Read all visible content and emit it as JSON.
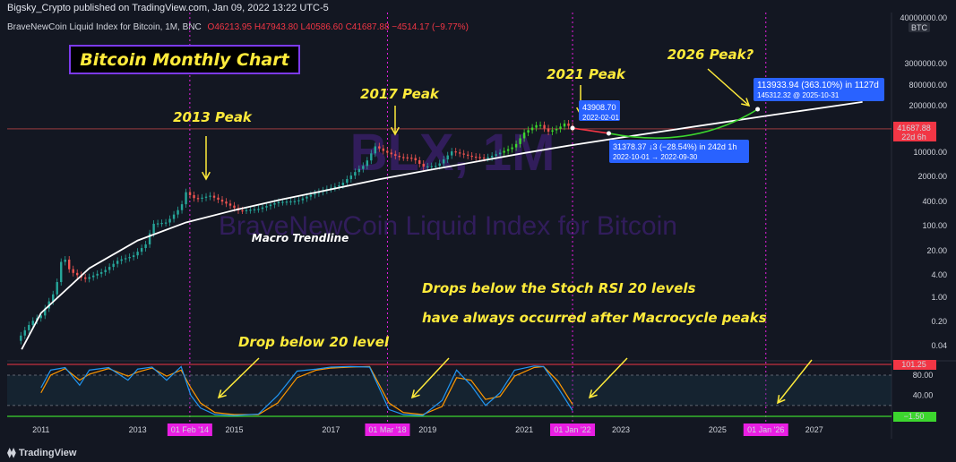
{
  "header": {
    "credit": "Bigsky_Crypto published on TradingView.com, Jan 09, 2022 13:22 UTC-5",
    "symbol": "BraveNewCoin Liquid Index for Bitcoin, 1M, BNC",
    "ohlc": "O46213.95 H47943.80 L40586.60 C41687.88 −4514.17 (−9.77%)"
  },
  "watermark": {
    "ticker": "BLX, 1M",
    "name": "BraveNewCoin Liquid Index for Bitcoin"
  },
  "footer": {
    "brand": "TradingView",
    "logo": "tradingview-logo-icon"
  },
  "annotations": {
    "title": "Bitcoin Monthly Chart",
    "peak_2013": "2013 Peak",
    "peak_2017": "2017 Peak",
    "peak_2021": "2021 Peak",
    "peak_2026": "2026 Peak?",
    "trendline": "Macro Trendline",
    "note_line1": "Drops below the Stoch RSI 20 levels",
    "note_line2": "have always occurred after Macrocycle peaks",
    "drop_label": "Drop below 20 level"
  },
  "tooltips": {
    "peak_2021_price": "43908.70",
    "peak_2021_date": "2022-02-01",
    "bottom_line1": "31378.37 ↓3 (−28.54%) in 242d 1h",
    "bottom_line2": "2022-10-01 → 2022-09-30",
    "target_line1": "113933.94 (363.10%) in 1127d",
    "target_line2": "145312.32 @ 2025-10-31"
  },
  "price_axis": {
    "currency": "BTC",
    "ticks": [
      "40000000.00",
      "3000000.00",
      "800000.00",
      "200000.00",
      "10000.00",
      "2000.00",
      "400.00",
      "100.00",
      "20.00",
      "4.00",
      "1.00",
      "0.20",
      "0.04"
    ],
    "current_price": "41687.88",
    "current_countdown": "22d 6h"
  },
  "rsi_axis": {
    "ticks": [
      "80.00",
      "40.00"
    ],
    "upper_label": "101.25",
    "lower_label": "−1.50"
  },
  "time_axis": {
    "ticks": [
      "2011",
      "2013",
      "2015",
      "2017",
      "2019",
      "2021",
      "2023",
      "2025",
      "2027"
    ],
    "markers": [
      "01 Feb '14",
      "01 Mar '18",
      "01 Jan '22",
      "01 Jan '26"
    ]
  },
  "colors": {
    "bg": "#131722",
    "up": "#26a69a",
    "down": "#ef5350",
    "bright_up": "#3cd62e",
    "trendline": "#ffffff",
    "annotation": "#ffeb3b",
    "marker": "#e91ee3",
    "tooltip": "#2962ff",
    "rsi_k": "#2196f3",
    "rsi_d": "#ff9800"
  },
  "chart_data": {
    "type": "line",
    "y_scale": "log",
    "ylim": [
      0.02,
      60000000
    ],
    "xlim": [
      2010.3,
      2028.6
    ],
    "price_path": [
      [
        2010.5,
        0.06
      ],
      [
        2010.8,
        0.2
      ],
      [
        2011.0,
        0.3
      ],
      [
        2011.3,
        1.5
      ],
      [
        2011.45,
        15
      ],
      [
        2011.6,
        5
      ],
      [
        2011.9,
        3
      ],
      [
        2012.3,
        5
      ],
      [
        2012.6,
        10
      ],
      [
        2012.9,
        13
      ],
      [
        2013.2,
        30
      ],
      [
        2013.3,
        100
      ],
      [
        2013.6,
        110
      ],
      [
        2013.9,
        300
      ],
      [
        2014.0,
        750
      ],
      [
        2014.2,
        480
      ],
      [
        2014.5,
        600
      ],
      [
        2014.9,
        330
      ],
      [
        2015.1,
        230
      ],
      [
        2015.5,
        260
      ],
      [
        2015.9,
        400
      ],
      [
        2016.3,
        430
      ],
      [
        2016.6,
        650
      ],
      [
        2016.9,
        900
      ],
      [
        2017.2,
        1200
      ],
      [
        2017.5,
        2700
      ],
      [
        2017.7,
        4300
      ],
      [
        2017.92,
        14000
      ],
      [
        2018.1,
        10000
      ],
      [
        2018.4,
        7000
      ],
      [
        2018.7,
        6500
      ],
      [
        2018.9,
        3800
      ],
      [
        2019.2,
        4000
      ],
      [
        2019.5,
        10000
      ],
      [
        2019.9,
        7200
      ],
      [
        2020.2,
        6500
      ],
      [
        2020.5,
        9200
      ],
      [
        2020.8,
        13800
      ],
      [
        2021.0,
        33000
      ],
      [
        2021.3,
        58000
      ],
      [
        2021.5,
        35000
      ],
      [
        2021.7,
        43000
      ],
      [
        2021.85,
        61000
      ],
      [
        2021.95,
        46000
      ],
      [
        2022.0,
        41687.88
      ]
    ],
    "trendline": [
      [
        2010.6,
        0.035
      ],
      [
        2011.0,
        0.35
      ],
      [
        2012.0,
        6
      ],
      [
        2013.0,
        35
      ],
      [
        2014.0,
        110
      ],
      [
        2015.0,
        240
      ],
      [
        2016.0,
        480
      ],
      [
        2017.0,
        900
      ],
      [
        2018.0,
        1700
      ],
      [
        2019.0,
        3000
      ],
      [
        2020.0,
        5200
      ],
      [
        2021.0,
        9000
      ],
      [
        2022.0,
        15000
      ],
      [
        2023.0,
        24000
      ],
      [
        2024.0,
        38000
      ],
      [
        2025.0,
        60000
      ],
      [
        2026.0,
        95000
      ],
      [
        2028.0,
        230000
      ]
    ],
    "projection_2022": [
      [
        2022.0,
        43908.7
      ],
      [
        2022.75,
        31378.37
      ]
    ],
    "projection_2026": [
      [
        2022.75,
        31378.37
      ],
      [
        2024.5,
        62000
      ],
      [
        2025.83,
        145312.32
      ]
    ],
    "stoch_rsi": {
      "ylim": [
        -1.5,
        101.25
      ],
      "k": [
        [
          2011.0,
          55
        ],
        [
          2011.2,
          90
        ],
        [
          2011.5,
          95
        ],
        [
          2011.8,
          60
        ],
        [
          2012.0,
          90
        ],
        [
          2012.4,
          95
        ],
        [
          2012.8,
          70
        ],
        [
          2013.0,
          92
        ],
        [
          2013.3,
          96
        ],
        [
          2013.6,
          70
        ],
        [
          2013.9,
          97
        ],
        [
          2014.1,
          40
        ],
        [
          2014.3,
          15
        ],
        [
          2014.6,
          2
        ],
        [
          2015.0,
          0
        ],
        [
          2015.5,
          3
        ],
        [
          2015.9,
          40
        ],
        [
          2016.3,
          88
        ],
        [
          2016.7,
          92
        ],
        [
          2017.0,
          96
        ],
        [
          2017.4,
          97
        ],
        [
          2017.8,
          96
        ],
        [
          2018.2,
          12
        ],
        [
          2018.5,
          2
        ],
        [
          2018.9,
          0
        ],
        [
          2019.3,
          30
        ],
        [
          2019.6,
          90
        ],
        [
          2019.9,
          60
        ],
        [
          2020.2,
          20
        ],
        [
          2020.5,
          45
        ],
        [
          2020.8,
          90
        ],
        [
          2021.2,
          98
        ],
        [
          2021.4,
          97
        ],
        [
          2021.7,
          55
        ],
        [
          2022.0,
          10
        ]
      ],
      "d": [
        [
          2011.0,
          45
        ],
        [
          2011.2,
          80
        ],
        [
          2011.5,
          93
        ],
        [
          2011.8,
          70
        ],
        [
          2012.0,
          82
        ],
        [
          2012.4,
          93
        ],
        [
          2012.8,
          78
        ],
        [
          2013.0,
          86
        ],
        [
          2013.3,
          94
        ],
        [
          2013.6,
          78
        ],
        [
          2013.9,
          90
        ],
        [
          2014.1,
          55
        ],
        [
          2014.3,
          25
        ],
        [
          2014.6,
          6
        ],
        [
          2015.0,
          2
        ],
        [
          2015.5,
          2
        ],
        [
          2015.9,
          25
        ],
        [
          2016.3,
          75
        ],
        [
          2016.7,
          90
        ],
        [
          2017.0,
          94
        ],
        [
          2017.4,
          96
        ],
        [
          2017.8,
          97
        ],
        [
          2018.2,
          25
        ],
        [
          2018.5,
          6
        ],
        [
          2018.9,
          2
        ],
        [
          2019.3,
          18
        ],
        [
          2019.6,
          75
        ],
        [
          2019.9,
          70
        ],
        [
          2020.2,
          32
        ],
        [
          2020.5,
          38
        ],
        [
          2020.8,
          78
        ],
        [
          2021.2,
          95
        ],
        [
          2021.4,
          97
        ],
        [
          2021.7,
          68
        ],
        [
          2022.0,
          22
        ]
      ],
      "levels": [
        80,
        20
      ]
    },
    "marker_dates": [
      2014.08,
      2018.17,
      2022.0,
      2026.0
    ]
  }
}
